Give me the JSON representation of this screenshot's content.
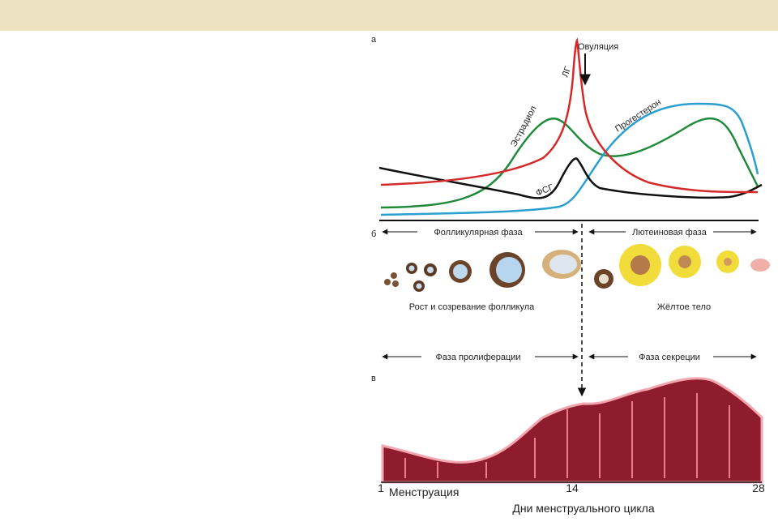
{
  "panel_a": {
    "label": "а",
    "ovulation": "Овуляция",
    "lh": "ЛГ",
    "estradiol": "Эстрадиол",
    "progesterone": "Прогестерон",
    "fsh": "ФСГ"
  },
  "panel_b": {
    "label": "б",
    "follicular_phase": "Фолликулярная фаза",
    "luteal_phase": "Лютеиновая фаза",
    "follicle_growth": "Рост и созревание фолликула",
    "corpus_luteum": "Жёлтое тело"
  },
  "panel_c": {
    "label": "в",
    "proliferation_phase": "Фаза пролиферации",
    "secretion_phase": "Фаза секреции",
    "day_ticks": [
      1,
      14,
      28
    ],
    "menstruation": "Менструация",
    "axis_title": "Дни менструального цикла"
  }
}
